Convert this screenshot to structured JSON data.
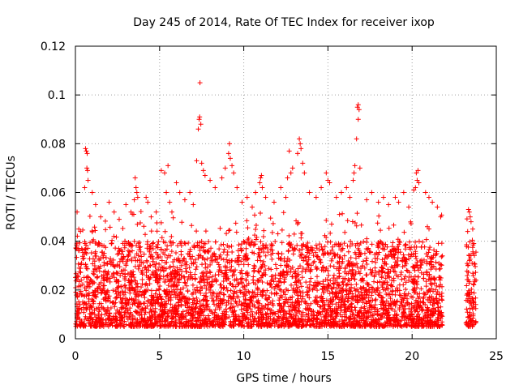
{
  "chart_data": {
    "type": "scatter",
    "title": "Day 245 of 2014, Rate Of TEC Index for receiver ixop",
    "xlabel": "GPS time / hours",
    "ylabel": "ROTI / TECUs",
    "xlim": [
      0,
      25
    ],
    "ylim": [
      0,
      0.12
    ],
    "xticks": [
      0,
      5,
      10,
      15,
      20,
      25
    ],
    "xtick_labels": [
      "0",
      "5",
      "10",
      "15",
      "20",
      "25"
    ],
    "yticks": [
      0,
      0.02,
      0.04,
      0.06,
      0.08,
      0.1,
      0.12
    ],
    "ytick_labels": [
      "0",
      "0.02",
      "0.04",
      "0.06",
      "0.08",
      "0.1",
      "0.12"
    ],
    "grid": true,
    "marker": "+",
    "color": "#ff0000",
    "dense_band": {
      "x_range_segments": [
        [
          0,
          21.8
        ],
        [
          23.2,
          23.8
        ]
      ],
      "typical_y_range": [
        0.005,
        0.04
      ]
    },
    "points": [
      [
        0.6,
        0.078
      ],
      [
        0.65,
        0.077
      ],
      [
        0.7,
        0.076
      ],
      [
        0.68,
        0.07
      ],
      [
        0.72,
        0.069
      ],
      [
        0.75,
        0.065
      ],
      [
        0.55,
        0.062
      ],
      [
        0.2,
        0.045
      ],
      [
        0.3,
        0.044
      ],
      [
        0.05,
        0.037
      ],
      [
        0.1,
        0.052
      ],
      [
        1.0,
        0.06
      ],
      [
        1.2,
        0.055
      ],
      [
        1.5,
        0.05
      ],
      [
        2.0,
        0.056
      ],
      [
        2.3,
        0.052
      ],
      [
        2.6,
        0.049
      ],
      [
        3.0,
        0.055
      ],
      [
        3.3,
        0.052
      ],
      [
        3.55,
        0.066
      ],
      [
        3.6,
        0.062
      ],
      [
        3.65,
        0.06
      ],
      [
        3.7,
        0.058
      ],
      [
        3.5,
        0.057
      ],
      [
        4.2,
        0.058
      ],
      [
        4.3,
        0.056
      ],
      [
        4.5,
        0.05
      ],
      [
        4.8,
        0.052
      ],
      [
        5.1,
        0.069
      ],
      [
        5.3,
        0.068
      ],
      [
        5.5,
        0.071
      ],
      [
        5.4,
        0.06
      ],
      [
        5.6,
        0.056
      ],
      [
        6.0,
        0.064
      ],
      [
        6.2,
        0.06
      ],
      [
        6.5,
        0.057
      ],
      [
        6.8,
        0.06
      ],
      [
        7.0,
        0.055
      ],
      [
        7.2,
        0.073
      ],
      [
        7.35,
        0.09
      ],
      [
        7.38,
        0.091
      ],
      [
        7.3,
        0.086
      ],
      [
        7.4,
        0.105
      ],
      [
        7.45,
        0.088
      ],
      [
        7.6,
        0.069
      ],
      [
        7.7,
        0.067
      ],
      [
        7.5,
        0.072
      ],
      [
        8.0,
        0.065
      ],
      [
        8.3,
        0.062
      ],
      [
        8.7,
        0.066
      ],
      [
        8.9,
        0.07
      ],
      [
        9.1,
        0.076
      ],
      [
        9.15,
        0.08
      ],
      [
        9.2,
        0.074
      ],
      [
        9.3,
        0.071
      ],
      [
        9.4,
        0.068
      ],
      [
        9.6,
        0.062
      ],
      [
        9.9,
        0.056
      ],
      [
        10.2,
        0.058
      ],
      [
        10.5,
        0.054
      ],
      [
        10.7,
        0.06
      ],
      [
        11.0,
        0.066
      ],
      [
        11.05,
        0.067
      ],
      [
        10.95,
        0.064
      ],
      [
        11.1,
        0.062
      ],
      [
        11.3,
        0.058
      ],
      [
        11.8,
        0.056
      ],
      [
        12.2,
        0.062
      ],
      [
        12.5,
        0.058
      ],
      [
        12.7,
        0.077
      ],
      [
        12.9,
        0.07
      ],
      [
        12.8,
        0.068
      ],
      [
        12.6,
        0.066
      ],
      [
        13.3,
        0.082
      ],
      [
        13.35,
        0.08
      ],
      [
        13.4,
        0.078
      ],
      [
        13.5,
        0.072
      ],
      [
        13.2,
        0.076
      ],
      [
        13.6,
        0.068
      ],
      [
        13.9,
        0.06
      ],
      [
        14.3,
        0.058
      ],
      [
        14.6,
        0.062
      ],
      [
        14.9,
        0.068
      ],
      [
        15.0,
        0.065
      ],
      [
        15.1,
        0.064
      ],
      [
        15.5,
        0.058
      ],
      [
        15.8,
        0.06
      ],
      [
        16.1,
        0.062
      ],
      [
        16.3,
        0.058
      ],
      [
        16.55,
        0.068
      ],
      [
        16.6,
        0.071
      ],
      [
        16.5,
        0.065
      ],
      [
        16.7,
        0.082
      ],
      [
        16.75,
        0.095
      ],
      [
        16.8,
        0.096
      ],
      [
        16.85,
        0.094
      ],
      [
        16.8,
        0.09
      ],
      [
        16.9,
        0.07
      ],
      [
        17.3,
        0.057
      ],
      [
        17.6,
        0.06
      ],
      [
        18.0,
        0.056
      ],
      [
        18.3,
        0.058
      ],
      [
        18.6,
        0.055
      ],
      [
        19.0,
        0.058
      ],
      [
        19.2,
        0.056
      ],
      [
        19.5,
        0.06
      ],
      [
        19.8,
        0.054
      ],
      [
        20.1,
        0.061
      ],
      [
        20.2,
        0.062
      ],
      [
        20.3,
        0.065
      ],
      [
        20.35,
        0.069
      ],
      [
        20.25,
        0.068
      ],
      [
        20.4,
        0.064
      ],
      [
        20.8,
        0.06
      ],
      [
        21.0,
        0.058
      ],
      [
        21.2,
        0.056
      ],
      [
        21.5,
        0.054
      ],
      [
        21.7,
        0.05
      ],
      [
        23.3,
        0.044
      ],
      [
        23.35,
        0.053
      ],
      [
        23.4,
        0.052
      ],
      [
        23.45,
        0.05
      ],
      [
        23.5,
        0.048
      ],
      [
        23.6,
        0.045
      ]
    ]
  }
}
